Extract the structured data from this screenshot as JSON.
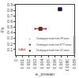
{
  "chart_data": {
    "type": "scatter",
    "xlabel": "e_εmean",
    "ylabel": "Fb",
    "xlim": [
      0,
      0.009
    ],
    "ylim": [
      0,
      0.9
    ],
    "xticks": [
      0,
      0.001,
      0.002,
      0.003,
      0.004,
      0.005,
      0.006,
      0.007,
      {
        "value": 0.008,
        "label": "0.0080"
      },
      0.009
    ],
    "yticks": [
      0.1,
      0.2,
      0.3,
      0.4,
      0.5,
      0.6,
      0.7,
      0.8,
      0.9
    ],
    "grid": false,
    "legend": "lower right",
    "series": [
      {
        "name": "Champagne made from UP wines",
        "color": "#cc8888",
        "marker": "triangle-up",
        "x": [
          0.00095
        ],
        "values": [
          0.1
        ],
        "xerr": [
          0.00045
        ]
      },
      {
        "name": "Champagne made from R TO wines",
        "color": "#7b2020",
        "marker": "square",
        "x": [
          0.0038
        ],
        "values": [
          0.47
        ],
        "xerr": [
          0.00085
        ]
      },
      {
        "name": "Champagne made from UC wines",
        "color": "#2d1040",
        "marker": "square",
        "x": [
          0.0068
        ],
        "values": [
          0.82
        ],
        "xerr": [
          0.00025
        ]
      }
    ]
  }
}
